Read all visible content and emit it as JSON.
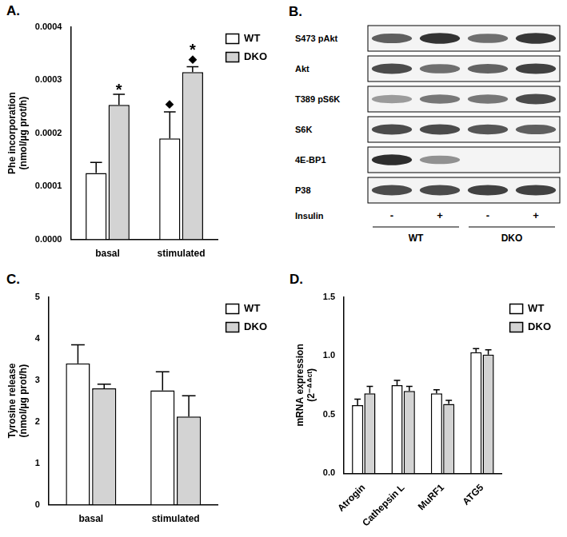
{
  "chart_data": [
    {
      "type": "bar",
      "title": "A.",
      "y_label": [
        "Phe incorporation",
        "(nmol/µg prot/h)"
      ],
      "categories": [
        "basal",
        "stimulated"
      ],
      "series": [
        {
          "name": "WT",
          "color": "#ffffff",
          "values": [
            0.000125,
            0.00019
          ],
          "errors": [
            2e-05,
            5e-05
          ]
        },
        {
          "name": "DKO",
          "color": "#d3d3d3",
          "values": [
            0.000253,
            0.000315
          ],
          "errors": [
            2e-05,
            1e-05
          ]
        }
      ],
      "ylim": [
        0,
        0.0004
      ],
      "yticks": [
        {
          "value": 0,
          "label": "0.0000"
        },
        {
          "value": 0.0001,
          "label": "0.0001"
        },
        {
          "value": 0.0002,
          "label": "0.0002"
        },
        {
          "value": 0.0003,
          "label": "0.0003"
        },
        {
          "value": 0.0004,
          "label": "0.0004"
        }
      ],
      "grid": false,
      "legend": "top right",
      "annotations": [
        {
          "series": "DKO",
          "category": "basal",
          "text": "*"
        },
        {
          "series": "WT",
          "category": "stimulated",
          "text": "◆"
        },
        {
          "series": "DKO",
          "category": "stimulated",
          "text": "◆"
        },
        {
          "series": "DKO",
          "category": "stimulated",
          "text": "*"
        }
      ]
    },
    {
      "type": "bar",
      "title": "C.",
      "y_label": [
        "Tyrosine release",
        "(nmol/µg prot/h)"
      ],
      "categories": [
        "basal",
        "stimulated"
      ],
      "series": [
        {
          "name": "WT",
          "color": "#ffffff",
          "values": [
            3.4,
            2.75
          ],
          "errors": [
            0.45,
            0.45
          ]
        },
        {
          "name": "DKO",
          "color": "#d3d3d3",
          "values": [
            2.8,
            2.12
          ],
          "errors": [
            0.1,
            0.5
          ]
        }
      ],
      "ylim": [
        0,
        5
      ],
      "yticks": [
        0,
        1,
        2,
        3,
        4,
        5
      ],
      "grid": false,
      "legend": "top right"
    },
    {
      "type": "bar",
      "title": "D.",
      "y_label": [
        "mRNA expression",
        "(2⁻ᐞᐞᶜᵗ)"
      ],
      "categories": [
        "Atrogin",
        "Cathepsin L",
        "MuRF1",
        "ATG5"
      ],
      "series": [
        {
          "name": "WT",
          "color": "#ffffff",
          "values": [
            0.58,
            0.75,
            0.68,
            1.03
          ],
          "errors": [
            0.05,
            0.04,
            0.03,
            0.03
          ]
        },
        {
          "name": "DKO",
          "color": "#d3d3d3",
          "values": [
            0.68,
            0.7,
            0.59,
            1.01
          ],
          "errors": [
            0.06,
            0.04,
            0.03,
            0.04
          ]
        }
      ],
      "ylim": [
        0,
        1.5
      ],
      "yticks": [
        {
          "value": 0,
          "label": "0.0"
        },
        {
          "value": 0.5,
          "label": "0.5"
        },
        {
          "value": 1,
          "label": "1.0"
        },
        {
          "value": 1.5,
          "label": "1.5"
        }
      ],
      "grid": false,
      "legend": "top right"
    }
  ],
  "blot": {
    "title": "B.",
    "rows": [
      {
        "label": "S473 pAkt",
        "band_intensity": [
          0.7,
          0.92,
          0.62,
          0.9
        ]
      },
      {
        "label": "Akt",
        "band_intensity": [
          0.8,
          0.62,
          0.68,
          0.85
        ]
      },
      {
        "label": "T389 pS6K",
        "band_intensity": [
          0.4,
          0.58,
          0.58,
          0.8
        ]
      },
      {
        "label": "S6K",
        "band_intensity": [
          0.8,
          0.8,
          0.75,
          0.7
        ]
      },
      {
        "label": "4E-BP1",
        "band_intensity": [
          0.95,
          0.45,
          0,
          0
        ]
      },
      {
        "label": "P38",
        "band_intensity": [
          0.8,
          0.8,
          0.85,
          0.85
        ]
      }
    ],
    "treatment": {
      "label": "Insulin",
      "values": [
        "-",
        "+",
        "-",
        "+"
      ]
    },
    "groups": [
      "WT",
      "DKO"
    ]
  }
}
